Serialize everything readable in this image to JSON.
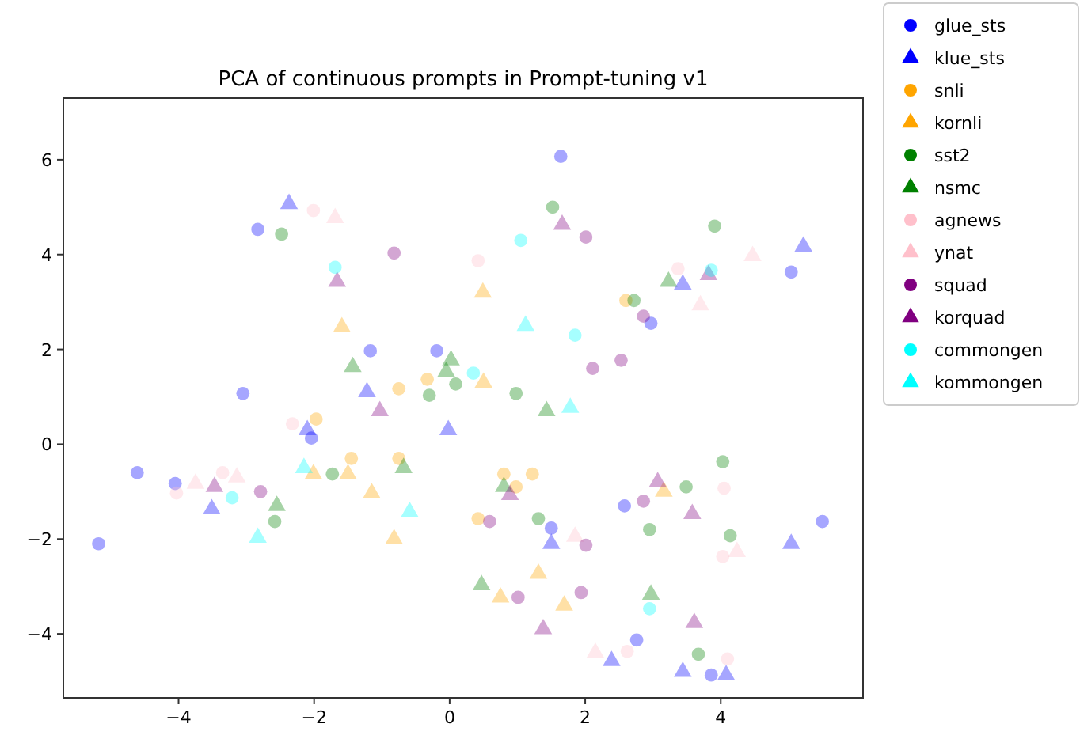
{
  "chart_data": {
    "type": "scatter",
    "title": "PCA of continuous prompts in Prompt-tuning v1",
    "xlim": [
      -5.7,
      6.1
    ],
    "ylim": [
      -5.35,
      7.3
    ],
    "xticks": [
      -4,
      -2,
      0,
      2,
      4
    ],
    "yticks": [
      -4,
      -2,
      0,
      2,
      4,
      6
    ],
    "grid": false,
    "legend": "right",
    "series": [
      {
        "name": "glue_sts",
        "color": "#0000ff",
        "marker": "circle",
        "x": [
          -2.83,
          -3.05,
          -4.61,
          -4.05,
          -5.18,
          1.64,
          -1.17,
          -0.19,
          5.04,
          5.5,
          2.58,
          2.76,
          1.5,
          3.86,
          2.97,
          -2.04
        ],
        "values": [
          4.53,
          1.07,
          -0.6,
          -0.83,
          -2.1,
          6.07,
          1.97,
          1.97,
          3.63,
          -1.63,
          -1.3,
          -4.13,
          -1.77,
          -4.87,
          2.55,
          0.13
        ]
      },
      {
        "name": "klue_sts",
        "color": "#0000ff",
        "marker": "triangle",
        "x": [
          -2.37,
          5.22,
          5.04,
          3.44,
          4.08,
          2.39,
          1.5,
          3.44,
          -3.51,
          -1.22,
          -0.02,
          -2.1
        ],
        "values": [
          5.07,
          4.17,
          -2.1,
          -4.8,
          -4.87,
          -4.57,
          -2.1,
          3.37,
          -1.37,
          1.1,
          0.3,
          0.3
        ]
      },
      {
        "name": "snli",
        "color": "#ffa500",
        "marker": "circle",
        "x": [
          -0.33,
          -0.75,
          0.8,
          0.98,
          1.22,
          0.42,
          -0.75,
          -1.45,
          -1.97,
          2.6
        ],
        "values": [
          1.37,
          1.17,
          -0.63,
          -0.9,
          -0.63,
          -1.57,
          -0.3,
          -0.3,
          0.53,
          3.03
        ]
      },
      {
        "name": "kornli",
        "color": "#ffa500",
        "marker": "triangle",
        "x": [
          0.49,
          -1.59,
          0.5,
          1.31,
          0.75,
          1.69,
          -1.5,
          -0.82,
          3.16,
          -1.15,
          -2.01
        ],
        "values": [
          3.2,
          2.47,
          1.3,
          -2.73,
          -3.23,
          -3.4,
          -0.63,
          -2.0,
          -1.0,
          -1.03,
          -0.63
        ]
      },
      {
        "name": "sst2",
        "color": "#008000",
        "marker": "circle",
        "x": [
          -2.48,
          1.52,
          0.09,
          0.98,
          4.03,
          3.49,
          1.31,
          2.95,
          3.67,
          4.14,
          3.91,
          -2.58,
          2.72,
          -0.3,
          -1.73
        ],
        "values": [
          4.43,
          5.0,
          1.27,
          1.07,
          -0.37,
          -0.9,
          -1.57,
          -1.8,
          -4.43,
          -1.93,
          4.6,
          -1.63,
          3.03,
          1.03,
          -0.63
        ]
      },
      {
        "name": "nsmc",
        "color": "#008000",
        "marker": "triangle",
        "x": [
          -1.43,
          -0.05,
          0.8,
          0.47,
          2.97,
          3.23,
          -0.68,
          0.02,
          1.43,
          -2.55
        ],
        "values": [
          1.63,
          1.53,
          -0.9,
          -2.97,
          -3.17,
          3.43,
          -0.5,
          1.77,
          0.7,
          -1.3
        ]
      },
      {
        "name": "agnews",
        "color": "#ffc0cb",
        "marker": "circle",
        "x": [
          -2.01,
          0.42,
          4.05,
          2.62,
          4.1,
          4.03,
          -4.03,
          -3.35,
          -2.32,
          3.37
        ],
        "values": [
          4.93,
          3.87,
          -0.93,
          -4.37,
          -4.53,
          -2.37,
          -1.03,
          -0.6,
          0.43,
          3.7
        ]
      },
      {
        "name": "ynat",
        "color": "#ffc0cb",
        "marker": "triangle",
        "x": [
          -1.69,
          4.47,
          4.24,
          -3.75,
          1.85,
          2.15,
          3.7,
          -3.14
        ],
        "values": [
          4.77,
          3.97,
          -2.27,
          -0.83,
          -1.95,
          -4.4,
          2.93,
          -0.7
        ]
      },
      {
        "name": "squad",
        "color": "#800080",
        "marker": "circle",
        "x": [
          -0.82,
          2.01,
          2.86,
          2.11,
          2.53,
          1.94,
          1.01,
          2.01,
          2.86,
          -2.79,
          0.59
        ],
        "values": [
          4.03,
          4.37,
          2.7,
          1.6,
          1.77,
          -3.13,
          -3.23,
          -2.13,
          -1.2,
          -1.0,
          -1.63
        ]
      },
      {
        "name": "korquad",
        "color": "#800080",
        "marker": "triangle",
        "x": [
          -1.66,
          1.66,
          3.07,
          3.58,
          3.61,
          1.38,
          0.89,
          -1.03,
          -3.47,
          3.82
        ],
        "values": [
          3.43,
          4.63,
          -0.8,
          -1.47,
          -3.77,
          -3.9,
          -1.07,
          0.7,
          -0.9,
          3.57
        ]
      },
      {
        "name": "commongen",
        "color": "#00ffff",
        "marker": "circle",
        "x": [
          -1.69,
          1.05,
          1.85,
          3.86,
          2.95,
          -3.21,
          0.35
        ],
        "values": [
          3.73,
          4.3,
          2.3,
          3.67,
          -3.47,
          -1.13,
          1.5
        ]
      },
      {
        "name": "kommongen",
        "color": "#00ffff",
        "marker": "triangle",
        "x": [
          1.12,
          1.78,
          -0.59,
          -2.83,
          -2.15
        ],
        "values": [
          2.5,
          0.77,
          -1.43,
          -1.97,
          -0.5
        ]
      }
    ]
  }
}
